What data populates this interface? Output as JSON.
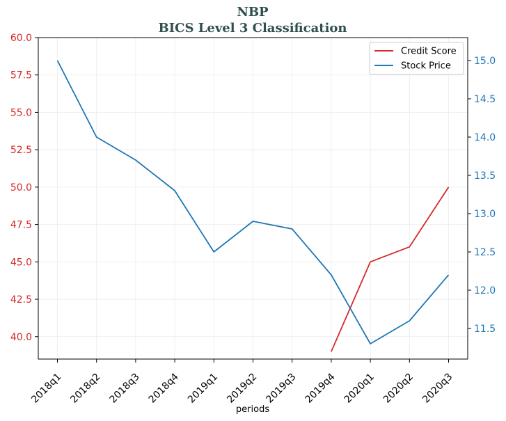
{
  "chart_data": {
    "type": "line",
    "title": "NBP",
    "subtitle": "BICS Level 3 Classification",
    "xlabel": "periods",
    "categories": [
      "2018q1",
      "2018q2",
      "2018q3",
      "2018q4",
      "2019q1",
      "2019q2",
      "2019q3",
      "2019q4",
      "2020q1",
      "2020q2",
      "2020q3"
    ],
    "y_left": {
      "range": [
        38.5,
        60.0
      ],
      "ticks": [
        40.0,
        42.5,
        45.0,
        47.5,
        50.0,
        52.5,
        55.0,
        57.5,
        60.0
      ],
      "tick_labels": [
        "40.0",
        "42.5",
        "45.0",
        "47.5",
        "50.0",
        "52.5",
        "55.0",
        "57.5",
        "60.0"
      ],
      "color": "#d62728"
    },
    "y_right": {
      "range": [
        11.1,
        15.3
      ],
      "ticks": [
        11.5,
        12.0,
        12.5,
        13.0,
        13.5,
        14.0,
        14.5,
        15.0
      ],
      "tick_labels": [
        "11.5",
        "12.0",
        "12.5",
        "13.0",
        "13.5",
        "14.0",
        "14.5",
        "15.0"
      ],
      "color": "#1f77b4"
    },
    "series": [
      {
        "name": "Credit Score",
        "axis": "left",
        "color": "#d62728",
        "values": [
          null,
          null,
          null,
          null,
          null,
          null,
          null,
          39.0,
          45.0,
          46.0,
          50.0
        ]
      },
      {
        "name": "Stock Price",
        "axis": "right",
        "color": "#1f77b4",
        "values": [
          15.0,
          14.0,
          13.7,
          13.3,
          12.5,
          12.9,
          12.8,
          12.2,
          11.3,
          11.6,
          12.2
        ]
      }
    ],
    "legend": {
      "placement": "top-right",
      "entries": [
        "Credit Score",
        "Stock Price"
      ]
    },
    "grid": true
  }
}
